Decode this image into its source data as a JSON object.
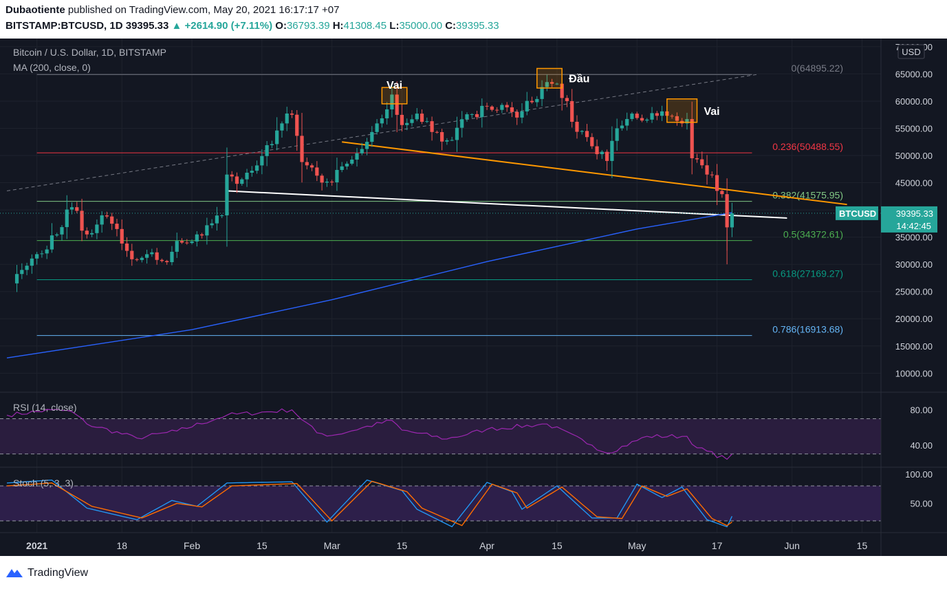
{
  "header": {
    "publisher_name": "Dubaotiente",
    "publisher_text": "published on TradingView.com, May 20, 2021 16:17:17 +07",
    "symbol": "BITSTAMP:BTCUSD, 1D",
    "last": "39395.33",
    "change": "+2614.90 (+7.11%)",
    "o_label": "O:",
    "o": "36793.39",
    "h_label": "H:",
    "h": "41308.45",
    "l_label": "L:",
    "l": "35000.00",
    "c_label": "C:",
    "c": "39395.33"
  },
  "legend": {
    "title": "Bitcoin / U.S. Dollar, 1D, BITSTAMP",
    "ma": "MA (200, close, 0)"
  },
  "rsi_label": "RSI (14, close)",
  "stoch_label": "Stoch (5, 3, 3)",
  "currency": "USD",
  "price_tag": {
    "symbol": "BTCUSD",
    "price": "39395.33",
    "countdown": "14:42:45"
  },
  "footer": {
    "brand": "TradingView"
  },
  "colors": {
    "up": "#26a69a",
    "down": "#ef5350",
    "ma": "#2962ff",
    "rsi": "#9c27b0",
    "stoch_k": "#2196f3",
    "stoch_d": "#ff6d00",
    "orange_line": "#ff9800",
    "background": "#131722"
  },
  "chart_data": {
    "type": "candlestick",
    "title": "Bitcoin / U.S. Dollar, 1D, BITSTAMP",
    "x_axis_labels": [
      "2021",
      "18",
      "Feb",
      "15",
      "Mar",
      "15",
      "Apr",
      "15",
      "May",
      "17",
      "Jun",
      "15"
    ],
    "y_axis_ticks": [
      10000,
      15000,
      20000,
      25000,
      30000,
      35000,
      40000,
      45000,
      50000,
      55000,
      60000,
      65000,
      70000
    ],
    "y_axis_labels": [
      "10000.00",
      "15000.00",
      "20000.00",
      "25000.00",
      "30000.00",
      "35000.00",
      "40000.00",
      "45000.00",
      "50000.00",
      "55000.00",
      "60000.00",
      "65000.00",
      "70000.00"
    ],
    "ylim": [
      6500,
      71500
    ],
    "x_range": [
      "2020-12-26",
      "2021-06-17"
    ],
    "close_anchors": [
      {
        "date": "2020-12-27",
        "close": 26500
      },
      {
        "date": "2021-01-02",
        "close": 32000
      },
      {
        "date": "2021-01-08",
        "close": 40500
      },
      {
        "date": "2021-01-11",
        "close": 35500
      },
      {
        "date": "2021-01-14",
        "close": 39000
      },
      {
        "date": "2021-01-21",
        "close": 30800
      },
      {
        "date": "2021-01-24",
        "close": 32200
      },
      {
        "date": "2021-01-27",
        "close": 30400
      },
      {
        "date": "2021-01-29",
        "close": 34300
      },
      {
        "date": "2021-02-02",
        "close": 35500
      },
      {
        "date": "2021-02-07",
        "close": 39000
      },
      {
        "date": "2021-02-08",
        "close": 46500
      },
      {
        "date": "2021-02-10",
        "close": 44800
      },
      {
        "date": "2021-02-13",
        "close": 47200
      },
      {
        "date": "2021-02-17",
        "close": 52100
      },
      {
        "date": "2021-02-19",
        "close": 55900
      },
      {
        "date": "2021-02-21",
        "close": 57500
      },
      {
        "date": "2021-02-23",
        "close": 48800
      },
      {
        "date": "2021-02-26",
        "close": 46300
      },
      {
        "date": "2021-02-28",
        "close": 45200
      },
      {
        "date": "2021-03-04",
        "close": 48500
      },
      {
        "date": "2021-03-07",
        "close": 51200
      },
      {
        "date": "2021-03-10",
        "close": 55900
      },
      {
        "date": "2021-03-13",
        "close": 61200
      },
      {
        "date": "2021-03-15",
        "close": 55600
      },
      {
        "date": "2021-03-18",
        "close": 57700
      },
      {
        "date": "2021-03-22",
        "close": 54300
      },
      {
        "date": "2021-03-24",
        "close": 52800
      },
      {
        "date": "2021-03-26",
        "close": 55100
      },
      {
        "date": "2021-03-29",
        "close": 57600
      },
      {
        "date": "2021-04-01",
        "close": 59000
      },
      {
        "date": "2021-04-06",
        "close": 58000
      },
      {
        "date": "2021-04-08",
        "close": 58100
      },
      {
        "date": "2021-04-10",
        "close": 59800
      },
      {
        "date": "2021-04-13",
        "close": 63500
      },
      {
        "date": "2021-04-15",
        "close": 63200
      },
      {
        "date": "2021-04-17",
        "close": 60000
      },
      {
        "date": "2021-04-18",
        "close": 56200
      },
      {
        "date": "2021-04-22",
        "close": 51700
      },
      {
        "date": "2021-04-25",
        "close": 49000
      },
      {
        "date": "2021-04-27",
        "close": 55000
      },
      {
        "date": "2021-04-30",
        "close": 57700
      },
      {
        "date": "2021-05-03",
        "close": 56600
      },
      {
        "date": "2021-05-05",
        "close": 57300
      },
      {
        "date": "2021-05-07",
        "close": 57300
      },
      {
        "date": "2021-05-10",
        "close": 55900
      },
      {
        "date": "2021-05-11",
        "close": 56700
      },
      {
        "date": "2021-05-12",
        "close": 49500
      },
      {
        "date": "2021-05-15",
        "close": 46500
      },
      {
        "date": "2021-05-16",
        "close": 46400
      },
      {
        "date": "2021-05-17",
        "close": 43500
      },
      {
        "date": "2021-05-18",
        "close": 42900
      },
      {
        "date": "2021-05-19",
        "close": 36800
      },
      {
        "date": "2021-05-20",
        "close": 39395.33
      }
    ],
    "last_candle": {
      "date": "2021-05-20",
      "open": 36793.39,
      "high": 41308.45,
      "low": 35000.0,
      "close": 39395.33
    },
    "fibonacci": {
      "start": "2021-01-01",
      "end": "2021-05-24",
      "levels": [
        {
          "label": "0(64895.22)",
          "price": 64895.22,
          "color": "#787b86"
        },
        {
          "label": "0.236(50488.55)",
          "price": 50488.55,
          "color": "#f23645"
        },
        {
          "label": "0.382(41575.95)",
          "price": 41575.95,
          "color": "#81c784"
        },
        {
          "label": "0.5(34372.61)",
          "price": 34372.61,
          "color": "#4caf50"
        },
        {
          "label": "0.618(27169.27)",
          "price": 27169.27,
          "color": "#089981"
        },
        {
          "label": "0.786(16913.68)",
          "price": 16913.68,
          "color": "#64b5f6"
        }
      ]
    },
    "ma200": [
      {
        "date": "2020-12-26",
        "value": 12800
      },
      {
        "date": "2021-02-01",
        "value": 18000
      },
      {
        "date": "2021-03-01",
        "value": 23500
      },
      {
        "date": "2021-04-01",
        "value": 30500
      },
      {
        "date": "2021-05-01",
        "value": 36500
      },
      {
        "date": "2021-05-20",
        "value": 39500
      }
    ],
    "trendlines": [
      {
        "from": {
          "date": "2020-12-26",
          "price": 43500
        },
        "to": {
          "date": "2021-05-25",
          "price": 64900
        },
        "color": "#787b86",
        "style": "dashed"
      },
      {
        "from": {
          "date": "2021-03-03",
          "price": 52500
        },
        "to": {
          "date": "2021-06-12",
          "price": 41000
        },
        "color": "#ff9800",
        "style": "solid"
      },
      {
        "from": {
          "date": "2021-02-08",
          "price": 43500
        },
        "to": {
          "date": "2021-05-31",
          "price": 38500
        },
        "color": "#ffffff",
        "style": "solid"
      }
    ],
    "annotations": [
      {
        "text": "Vai",
        "box": {
          "from": "2021-03-11",
          "to": "2021-03-16",
          "high": 62500,
          "low": 59500
        }
      },
      {
        "text": "Đầu",
        "box": {
          "from": "2021-04-11",
          "to": "2021-04-16",
          "high": 66000,
          "low": 62400
        }
      },
      {
        "text": "Vai",
        "box": {
          "from": "2021-05-07",
          "to": "2021-05-13",
          "high": 60400,
          "low": 56100
        }
      }
    ],
    "rsi": {
      "label": "RSI (14, close)",
      "ticks": [
        "80.00",
        "40.00"
      ],
      "tick_values": [
        80,
        40
      ],
      "ylim": [
        15,
        100
      ],
      "bands": [
        70,
        30
      ],
      "anchors": [
        {
          "date": "2020-12-26",
          "value": 74
        },
        {
          "date": "2021-01-04",
          "value": 80
        },
        {
          "date": "2021-01-08",
          "value": 78
        },
        {
          "date": "2021-01-11",
          "value": 64
        },
        {
          "date": "2021-01-21",
          "value": 48
        },
        {
          "date": "2021-01-29",
          "value": 56
        },
        {
          "date": "2021-02-08",
          "value": 74
        },
        {
          "date": "2021-02-21",
          "value": 80
        },
        {
          "date": "2021-02-26",
          "value": 54
        },
        {
          "date": "2021-03-01",
          "value": 51
        },
        {
          "date": "2021-03-13",
          "value": 68
        },
        {
          "date": "2021-03-15",
          "value": 57
        },
        {
          "date": "2021-03-24",
          "value": 47
        },
        {
          "date": "2021-04-01",
          "value": 58
        },
        {
          "date": "2021-04-13",
          "value": 64
        },
        {
          "date": "2021-04-22",
          "value": 40
        },
        {
          "date": "2021-04-25",
          "value": 31
        },
        {
          "date": "2021-05-03",
          "value": 50
        },
        {
          "date": "2021-05-11",
          "value": 50
        },
        {
          "date": "2021-05-13",
          "value": 37
        },
        {
          "date": "2021-05-19",
          "value": 24
        },
        {
          "date": "2021-05-20",
          "value": 30
        }
      ]
    },
    "stoch": {
      "label": "Stoch (5, 3, 3)",
      "ticks": [
        "100.00",
        "50.00"
      ],
      "tick_values": [
        100,
        50
      ],
      "ylim": [
        0,
        112
      ],
      "bands": [
        80,
        20
      ],
      "k": [
        {
          "date": "2020-12-26",
          "value": 85
        },
        {
          "date": "2021-01-04",
          "value": 90
        },
        {
          "date": "2021-01-11",
          "value": 42
        },
        {
          "date": "2021-01-21",
          "value": 22
        },
        {
          "date": "2021-01-28",
          "value": 55
        },
        {
          "date": "2021-02-02",
          "value": 45
        },
        {
          "date": "2021-02-08",
          "value": 85
        },
        {
          "date": "2021-02-21",
          "value": 87
        },
        {
          "date": "2021-02-28",
          "value": 18
        },
        {
          "date": "2021-03-08",
          "value": 90
        },
        {
          "date": "2021-03-15",
          "value": 72
        },
        {
          "date": "2021-03-18",
          "value": 40
        },
        {
          "date": "2021-03-25",
          "value": 10
        },
        {
          "date": "2021-04-01",
          "value": 86
        },
        {
          "date": "2021-04-06",
          "value": 70
        },
        {
          "date": "2021-04-08",
          "value": 40
        },
        {
          "date": "2021-04-15",
          "value": 80
        },
        {
          "date": "2021-04-22",
          "value": 25
        },
        {
          "date": "2021-04-27",
          "value": 25
        },
        {
          "date": "2021-05-01",
          "value": 83
        },
        {
          "date": "2021-05-06",
          "value": 60
        },
        {
          "date": "2021-05-10",
          "value": 78
        },
        {
          "date": "2021-05-15",
          "value": 22
        },
        {
          "date": "2021-05-19",
          "value": 10
        },
        {
          "date": "2021-05-20",
          "value": 28
        }
      ],
      "d": [
        {
          "date": "2020-12-26",
          "value": 80
        },
        {
          "date": "2021-01-04",
          "value": 85
        },
        {
          "date": "2021-01-12",
          "value": 45
        },
        {
          "date": "2021-01-22",
          "value": 25
        },
        {
          "date": "2021-01-29",
          "value": 50
        },
        {
          "date": "2021-02-03",
          "value": 44
        },
        {
          "date": "2021-02-09",
          "value": 80
        },
        {
          "date": "2021-02-22",
          "value": 84
        },
        {
          "date": "2021-03-01",
          "value": 20
        },
        {
          "date": "2021-03-09",
          "value": 88
        },
        {
          "date": "2021-03-16",
          "value": 70
        },
        {
          "date": "2021-03-19",
          "value": 42
        },
        {
          "date": "2021-03-27",
          "value": 12
        },
        {
          "date": "2021-04-02",
          "value": 83
        },
        {
          "date": "2021-04-07",
          "value": 68
        },
        {
          "date": "2021-04-09",
          "value": 42
        },
        {
          "date": "2021-04-16",
          "value": 78
        },
        {
          "date": "2021-04-23",
          "value": 27
        },
        {
          "date": "2021-04-28",
          "value": 24
        },
        {
          "date": "2021-05-02",
          "value": 80
        },
        {
          "date": "2021-05-07",
          "value": 62
        },
        {
          "date": "2021-05-11",
          "value": 75
        },
        {
          "date": "2021-05-16",
          "value": 24
        },
        {
          "date": "2021-05-19",
          "value": 12
        },
        {
          "date": "2021-05-20",
          "value": 18
        }
      ]
    }
  }
}
